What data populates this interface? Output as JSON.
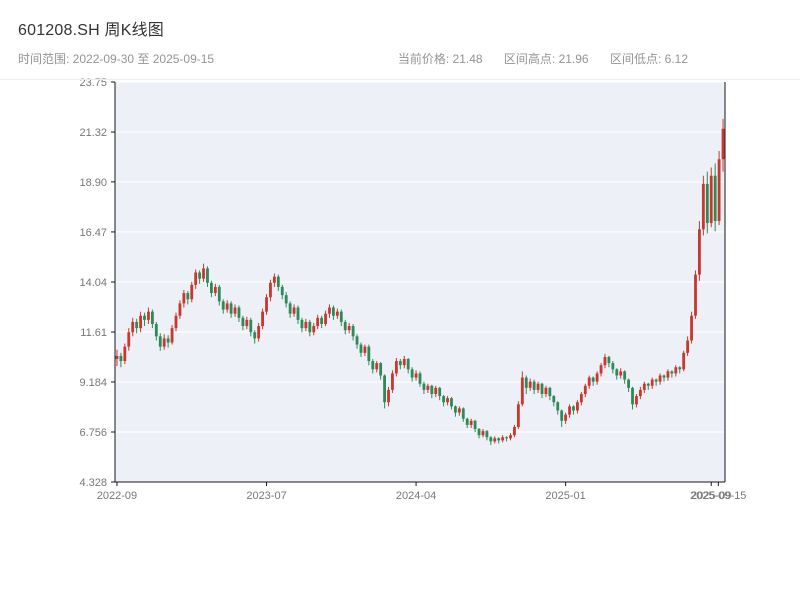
{
  "header": {
    "title": "601208.SH 周K线图",
    "range_label": "时间范围: 2022-09-30 至 2025-09-15",
    "stats": {
      "current_label": "当前价格:",
      "current_value": "21.48",
      "high_label": "区间高点:",
      "high_value": "21.96",
      "low_label": "区间低点:",
      "low_value": "6.12"
    }
  },
  "chart_data": {
    "type": "candlestick",
    "symbol": "601208.SH",
    "interval": "weekly",
    "title": "601208.SH 周K线图",
    "date_start": "2022-09-30",
    "date_end": "2025-09-15",
    "current_price": 21.48,
    "range_high": 21.96,
    "range_low": 6.12,
    "ylim": [
      4.328,
      23.75
    ],
    "grid": true,
    "y_ticks": [
      {
        "v": 23.75,
        "label": "23.75"
      },
      {
        "v": 21.32,
        "label": "21.32"
      },
      {
        "v": 18.9,
        "label": "18.90"
      },
      {
        "v": 16.47,
        "label": "16.47"
      },
      {
        "v": 14.04,
        "label": "14.04"
      },
      {
        "v": 11.61,
        "label": "11.61"
      },
      {
        "v": 9.184,
        "label": "9.184"
      },
      {
        "v": 6.756,
        "label": "6.756"
      },
      {
        "v": 4.328,
        "label": "4.328"
      }
    ],
    "x_ticks": [
      {
        "i": 0,
        "label": "2022-09"
      },
      {
        "i": 38,
        "label": "2023-07"
      },
      {
        "i": 76,
        "label": "2024-04"
      },
      {
        "i": 114,
        "label": "2025-01"
      },
      {
        "i": 151,
        "label": "2025-09"
      }
    ],
    "x_end_tick": {
      "i": 152.8,
      "label": "2025-09-15"
    },
    "colors": {
      "up": "#c9382e",
      "down": "#2e8b57",
      "plot_bg": "#edf1f7",
      "grid": "#ffffff",
      "axis": "#15151f",
      "tick_text": "#777777"
    },
    "candles": [
      [
        10.3,
        10.75,
        9.95,
        10.45
      ],
      [
        10.45,
        10.6,
        9.9,
        10.2
      ],
      [
        10.2,
        11.05,
        10.05,
        10.9
      ],
      [
        10.9,
        11.8,
        10.7,
        11.6
      ],
      [
        11.6,
        12.3,
        11.4,
        12.1
      ],
      [
        12.1,
        12.25,
        11.55,
        11.8
      ],
      [
        11.8,
        12.6,
        11.6,
        12.4
      ],
      [
        12.4,
        12.55,
        11.9,
        12.2
      ],
      [
        12.2,
        12.8,
        12.0,
        12.6
      ],
      [
        12.6,
        12.7,
        11.8,
        12.0
      ],
      [
        12.0,
        12.1,
        11.2,
        11.4
      ],
      [
        11.4,
        11.55,
        10.7,
        10.9
      ],
      [
        10.9,
        11.5,
        10.75,
        11.3
      ],
      [
        11.3,
        11.45,
        10.85,
        11.1
      ],
      [
        11.1,
        11.95,
        11.0,
        11.8
      ],
      [
        11.8,
        12.55,
        11.65,
        12.4
      ],
      [
        12.4,
        13.15,
        12.25,
        13.0
      ],
      [
        13.0,
        13.65,
        12.8,
        13.5
      ],
      [
        13.5,
        13.6,
        12.95,
        13.2
      ],
      [
        13.2,
        14.05,
        13.05,
        13.9
      ],
      [
        13.9,
        14.65,
        13.7,
        14.5
      ],
      [
        14.5,
        14.6,
        13.95,
        14.2
      ],
      [
        14.2,
        14.93,
        14.05,
        14.7
      ],
      [
        14.7,
        14.8,
        13.8,
        14.0
      ],
      [
        14.0,
        14.1,
        13.3,
        13.5
      ],
      [
        13.5,
        13.95,
        13.35,
        13.8
      ],
      [
        13.8,
        13.9,
        12.9,
        13.1
      ],
      [
        13.1,
        13.2,
        12.5,
        12.7
      ],
      [
        12.7,
        13.15,
        12.55,
        13.0
      ],
      [
        13.0,
        13.1,
        12.3,
        12.5
      ],
      [
        12.5,
        12.95,
        12.35,
        12.8
      ],
      [
        12.8,
        12.9,
        12.1,
        12.3
      ],
      [
        12.3,
        12.4,
        11.7,
        11.9
      ],
      [
        11.9,
        12.35,
        11.75,
        12.2
      ],
      [
        12.2,
        12.3,
        11.4,
        11.6
      ],
      [
        11.6,
        11.7,
        11.05,
        11.3
      ],
      [
        11.3,
        12.05,
        11.15,
        11.9
      ],
      [
        11.9,
        12.75,
        11.75,
        12.6
      ],
      [
        12.6,
        13.45,
        12.45,
        13.3
      ],
      [
        13.3,
        14.15,
        13.1,
        14.0
      ],
      [
        14.0,
        14.45,
        13.8,
        14.3
      ],
      [
        14.3,
        14.4,
        13.6,
        13.8
      ],
      [
        13.8,
        13.9,
        13.2,
        13.4
      ],
      [
        13.4,
        13.55,
        12.8,
        13.0
      ],
      [
        13.0,
        13.1,
        12.3,
        12.5
      ],
      [
        12.5,
        12.95,
        12.35,
        12.8
      ],
      [
        12.8,
        12.9,
        12.0,
        12.2
      ],
      [
        12.2,
        12.3,
        11.6,
        11.8
      ],
      [
        11.8,
        12.25,
        11.65,
        12.1
      ],
      [
        12.1,
        12.2,
        11.4,
        11.6
      ],
      [
        11.6,
        12.05,
        11.45,
        11.9
      ],
      [
        11.9,
        12.45,
        11.75,
        12.3
      ],
      [
        12.3,
        12.4,
        11.8,
        12.0
      ],
      [
        12.0,
        12.65,
        11.9,
        12.5
      ],
      [
        12.5,
        12.95,
        12.3,
        12.8
      ],
      [
        12.8,
        12.9,
        12.2,
        12.4
      ],
      [
        12.4,
        12.75,
        12.25,
        12.6
      ],
      [
        12.6,
        12.7,
        11.9,
        12.1
      ],
      [
        12.1,
        12.2,
        11.5,
        11.7
      ],
      [
        11.7,
        12.05,
        11.55,
        11.9
      ],
      [
        11.9,
        12.0,
        11.2,
        11.4
      ],
      [
        11.4,
        11.5,
        10.8,
        11.0
      ],
      [
        11.0,
        11.1,
        10.4,
        10.6
      ],
      [
        10.6,
        11.0,
        10.45,
        10.9
      ],
      [
        10.9,
        11.0,
        10.0,
        10.2
      ],
      [
        10.2,
        10.3,
        9.6,
        9.8
      ],
      [
        9.8,
        10.2,
        9.65,
        10.1
      ],
      [
        10.1,
        10.15,
        9.3,
        9.5
      ],
      [
        9.5,
        9.55,
        7.9,
        8.2
      ],
      [
        8.2,
        8.95,
        8.0,
        8.8
      ],
      [
        8.8,
        9.75,
        8.65,
        9.6
      ],
      [
        9.6,
        10.35,
        9.45,
        10.2
      ],
      [
        10.2,
        10.3,
        9.8,
        10.0
      ],
      [
        10.0,
        10.45,
        9.85,
        10.3
      ],
      [
        10.3,
        10.35,
        9.6,
        9.8
      ],
      [
        9.8,
        9.9,
        9.2,
        9.4
      ],
      [
        9.4,
        9.75,
        9.25,
        9.6
      ],
      [
        9.6,
        9.7,
        8.95,
        9.1
      ],
      [
        9.1,
        9.2,
        8.6,
        8.8
      ],
      [
        8.8,
        9.1,
        8.65,
        9.0
      ],
      [
        9.0,
        9.05,
        8.4,
        8.6
      ],
      [
        8.6,
        9.0,
        8.45,
        8.9
      ],
      [
        8.9,
        8.95,
        8.3,
        8.5
      ],
      [
        8.5,
        8.55,
        8.0,
        8.2
      ],
      [
        8.2,
        8.5,
        8.05,
        8.4
      ],
      [
        8.4,
        8.45,
        7.85,
        8.0
      ],
      [
        8.0,
        8.05,
        7.5,
        7.7
      ],
      [
        7.7,
        8.0,
        7.55,
        7.9
      ],
      [
        7.9,
        7.95,
        7.25,
        7.4
      ],
      [
        7.4,
        7.45,
        6.95,
        7.1
      ],
      [
        7.1,
        7.4,
        6.95,
        7.3
      ],
      [
        7.3,
        7.35,
        6.75,
        6.9
      ],
      [
        6.9,
        6.95,
        6.45,
        6.6
      ],
      [
        6.6,
        6.9,
        6.5,
        6.8
      ],
      [
        6.8,
        6.85,
        6.35,
        6.5
      ],
      [
        6.5,
        6.55,
        6.12,
        6.3
      ],
      [
        6.3,
        6.55,
        6.2,
        6.45
      ],
      [
        6.45,
        6.5,
        6.2,
        6.35
      ],
      [
        6.35,
        6.6,
        6.25,
        6.5
      ],
      [
        6.5,
        6.55,
        6.3,
        6.45
      ],
      [
        6.45,
        6.7,
        6.35,
        6.6
      ],
      [
        6.6,
        7.1,
        6.5,
        7.0
      ],
      [
        7.0,
        8.25,
        6.9,
        8.1
      ],
      [
        8.1,
        9.7,
        8.0,
        9.4
      ],
      [
        9.4,
        9.5,
        8.6,
        8.9
      ],
      [
        8.9,
        9.35,
        8.75,
        9.2
      ],
      [
        9.2,
        9.3,
        8.6,
        8.8
      ],
      [
        8.8,
        9.2,
        8.65,
        9.1
      ],
      [
        9.1,
        9.15,
        8.4,
        8.6
      ],
      [
        8.6,
        9.0,
        8.45,
        8.9
      ],
      [
        8.9,
        8.95,
        8.3,
        8.5
      ],
      [
        8.5,
        8.55,
        8.0,
        8.2
      ],
      [
        8.2,
        8.25,
        7.6,
        7.8
      ],
      [
        7.8,
        7.85,
        7.0,
        7.3
      ],
      [
        7.3,
        7.7,
        7.15,
        7.6
      ],
      [
        7.6,
        8.1,
        7.45,
        8.0
      ],
      [
        8.0,
        8.05,
        7.6,
        7.8
      ],
      [
        7.8,
        8.3,
        7.65,
        8.2
      ],
      [
        8.2,
        8.7,
        8.05,
        8.6
      ],
      [
        8.6,
        9.1,
        8.45,
        9.0
      ],
      [
        9.0,
        9.5,
        8.85,
        9.4
      ],
      [
        9.4,
        9.45,
        9.0,
        9.2
      ],
      [
        9.2,
        9.7,
        9.05,
        9.6
      ],
      [
        9.6,
        10.1,
        9.45,
        10.0
      ],
      [
        10.0,
        10.55,
        9.85,
        10.4
      ],
      [
        10.4,
        10.45,
        9.9,
        10.1
      ],
      [
        10.1,
        10.2,
        9.6,
        9.8
      ],
      [
        9.8,
        9.85,
        9.3,
        9.5
      ],
      [
        9.5,
        9.85,
        9.35,
        9.7
      ],
      [
        9.7,
        9.75,
        9.1,
        9.3
      ],
      [
        9.3,
        9.35,
        8.7,
        8.9
      ],
      [
        8.9,
        8.95,
        7.85,
        8.1
      ],
      [
        8.1,
        8.6,
        7.95,
        8.5
      ],
      [
        8.5,
        8.95,
        8.35,
        8.8
      ],
      [
        8.8,
        9.2,
        8.65,
        9.1
      ],
      [
        9.1,
        9.15,
        8.8,
        9.0
      ],
      [
        9.0,
        9.4,
        8.85,
        9.3
      ],
      [
        9.3,
        9.35,
        9.0,
        9.2
      ],
      [
        9.2,
        9.6,
        9.05,
        9.5
      ],
      [
        9.5,
        9.55,
        9.2,
        9.4
      ],
      [
        9.4,
        9.8,
        9.25,
        9.7
      ],
      [
        9.7,
        9.75,
        9.4,
        9.6
      ],
      [
        9.6,
        10.0,
        9.45,
        9.9
      ],
      [
        9.9,
        9.95,
        9.6,
        9.8
      ],
      [
        9.8,
        10.7,
        9.7,
        10.6
      ],
      [
        10.6,
        11.4,
        10.45,
        11.2
      ],
      [
        11.2,
        12.6,
        11.05,
        12.4
      ],
      [
        12.4,
        14.6,
        12.25,
        14.4
      ],
      [
        14.4,
        17.0,
        14.1,
        16.6
      ],
      [
        16.6,
        19.2,
        16.3,
        18.8
      ],
      [
        18.8,
        19.4,
        16.4,
        16.9
      ],
      [
        16.9,
        19.6,
        16.7,
        19.2
      ],
      [
        19.2,
        19.8,
        16.5,
        17.0
      ],
      [
        17.0,
        20.4,
        16.8,
        20.0
      ],
      [
        20.0,
        21.96,
        19.4,
        21.48
      ]
    ]
  }
}
